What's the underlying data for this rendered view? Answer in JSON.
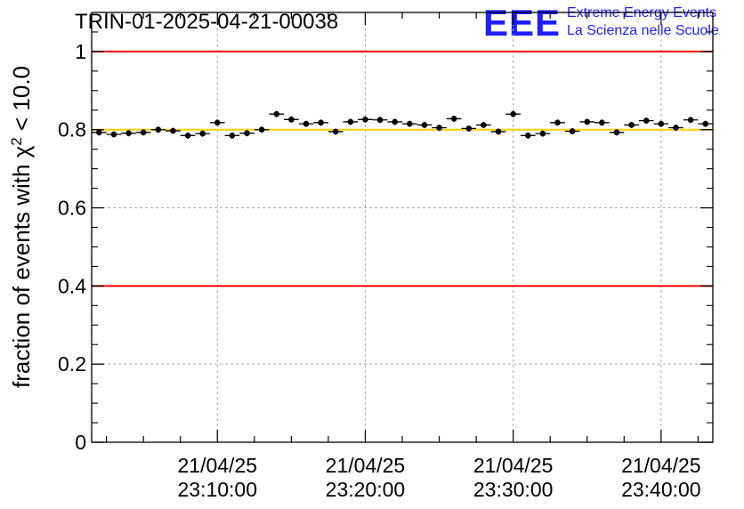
{
  "logo": {
    "mark": "EEE",
    "line1": "Extreme Energy Events",
    "line2": "La Scienza nelle Scuole"
  },
  "chart_data": {
    "type": "scatter",
    "title": "TRIN-01-2025-04-21-00038",
    "xlabel": "",
    "ylabel": "fraction of events with χ² < 10.0",
    "ylabel_parts": {
      "pre": "fraction of events with ",
      "chi": "χ",
      "sup": "2",
      "post": " < 10.0"
    },
    "x_unit": "minutes since 23:00:00",
    "xlim": [
      1.5,
      43.5
    ],
    "ylim": [
      0,
      1.1
    ],
    "yticks": [
      0,
      0.2,
      0.4,
      0.6,
      0.8,
      1
    ],
    "ytick_labels": [
      "0",
      "0.2",
      "0.4",
      "0.6",
      "0.8",
      "1"
    ],
    "xticks": [
      10,
      20,
      30,
      40
    ],
    "xtick_labels": [
      [
        "21/04/25",
        "23:10:00"
      ],
      [
        "21/04/25",
        "23:20:00"
      ],
      [
        "21/04/25",
        "23:30:00"
      ],
      [
        "21/04/25",
        "23:40:00"
      ]
    ],
    "grid": true,
    "reference_lines": [
      {
        "y": 1.0,
        "color": "#ff0000"
      },
      {
        "y": 0.4,
        "color": "#ff0000"
      },
      {
        "y": 0.8,
        "color": "#ffcc00"
      }
    ],
    "point_color": "#000000",
    "x_halfwidth": 0.5,
    "y_error": 0.008,
    "x": [
      2,
      3,
      4,
      5,
      6,
      7,
      8,
      9,
      10,
      11,
      12,
      13,
      14,
      15,
      16,
      17,
      18,
      19,
      20,
      21,
      22,
      23,
      24,
      25,
      26,
      27,
      28,
      29,
      30,
      31,
      32,
      33,
      34,
      35,
      36,
      37,
      38,
      39,
      40,
      41,
      42,
      43
    ],
    "y": [
      0.793,
      0.788,
      0.791,
      0.793,
      0.8,
      0.797,
      0.785,
      0.79,
      0.818,
      0.785,
      0.791,
      0.8,
      0.84,
      0.826,
      0.815,
      0.818,
      0.795,
      0.82,
      0.826,
      0.825,
      0.82,
      0.815,
      0.812,
      0.805,
      0.828,
      0.803,
      0.812,
      0.795,
      0.84,
      0.785,
      0.79,
      0.818,
      0.796,
      0.82,
      0.818,
      0.793,
      0.812,
      0.823,
      0.815,
      0.805,
      0.825,
      0.815
    ]
  }
}
